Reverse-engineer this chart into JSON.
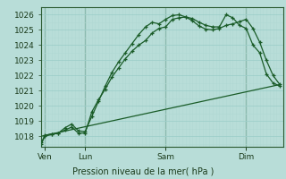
{
  "title": "Pression niveau de la mer( hPa )",
  "bg_color": "#b8ddd8",
  "grid_color_major": "#9ecfca",
  "grid_color_minor": "#b0d8d3",
  "line_color": "#1a5c28",
  "ylim": [
    1017.3,
    1026.5
  ],
  "yticks": [
    1018,
    1019,
    1020,
    1021,
    1022,
    1023,
    1024,
    1025,
    1026
  ],
  "xlim": [
    0,
    72
  ],
  "day_labels": [
    "Ven",
    "Lun",
    "Sam",
    "Dim"
  ],
  "day_positions": [
    1,
    13,
    37,
    61
  ],
  "line1_x": [
    0,
    1,
    3,
    5,
    7,
    9,
    11,
    13,
    15,
    17,
    19,
    21,
    23,
    25,
    27,
    29,
    31,
    33,
    35,
    37,
    39,
    41,
    43,
    45,
    47,
    49,
    51,
    53,
    55,
    57,
    59,
    61,
    63,
    65,
    67,
    69,
    71
  ],
  "line1_y": [
    1017.5,
    1018.0,
    1018.1,
    1018.2,
    1018.4,
    1018.6,
    1018.2,
    1018.2,
    1019.6,
    1020.4,
    1021.1,
    1021.9,
    1022.5,
    1023.1,
    1023.6,
    1024.0,
    1024.3,
    1024.8,
    1025.1,
    1025.2,
    1025.7,
    1025.8,
    1025.85,
    1025.75,
    1025.5,
    1025.3,
    1025.2,
    1025.2,
    1026.0,
    1025.8,
    1025.3,
    1025.1,
    1024.0,
    1023.5,
    1022.1,
    1021.5,
    1021.3
  ],
  "line2_x": [
    0,
    1,
    3,
    5,
    7,
    9,
    11,
    13,
    15,
    17,
    19,
    21,
    23,
    25,
    27,
    29,
    31,
    33,
    35,
    37,
    39,
    41,
    43,
    45,
    47,
    49,
    51,
    53,
    55,
    57,
    59,
    61,
    63,
    65,
    67,
    69,
    71
  ],
  "line2_y": [
    1017.6,
    1018.05,
    1018.15,
    1018.2,
    1018.55,
    1018.8,
    1018.35,
    1018.3,
    1019.3,
    1020.3,
    1021.3,
    1022.2,
    1022.9,
    1023.5,
    1024.1,
    1024.7,
    1025.2,
    1025.5,
    1025.4,
    1025.7,
    1025.95,
    1026.0,
    1025.85,
    1025.6,
    1025.25,
    1025.05,
    1025.0,
    1025.1,
    1025.3,
    1025.4,
    1025.55,
    1025.7,
    1025.1,
    1024.2,
    1023.0,
    1022.0,
    1021.4
  ],
  "line3_x": [
    0,
    71
  ],
  "line3_y": [
    1018.0,
    1021.4
  ]
}
